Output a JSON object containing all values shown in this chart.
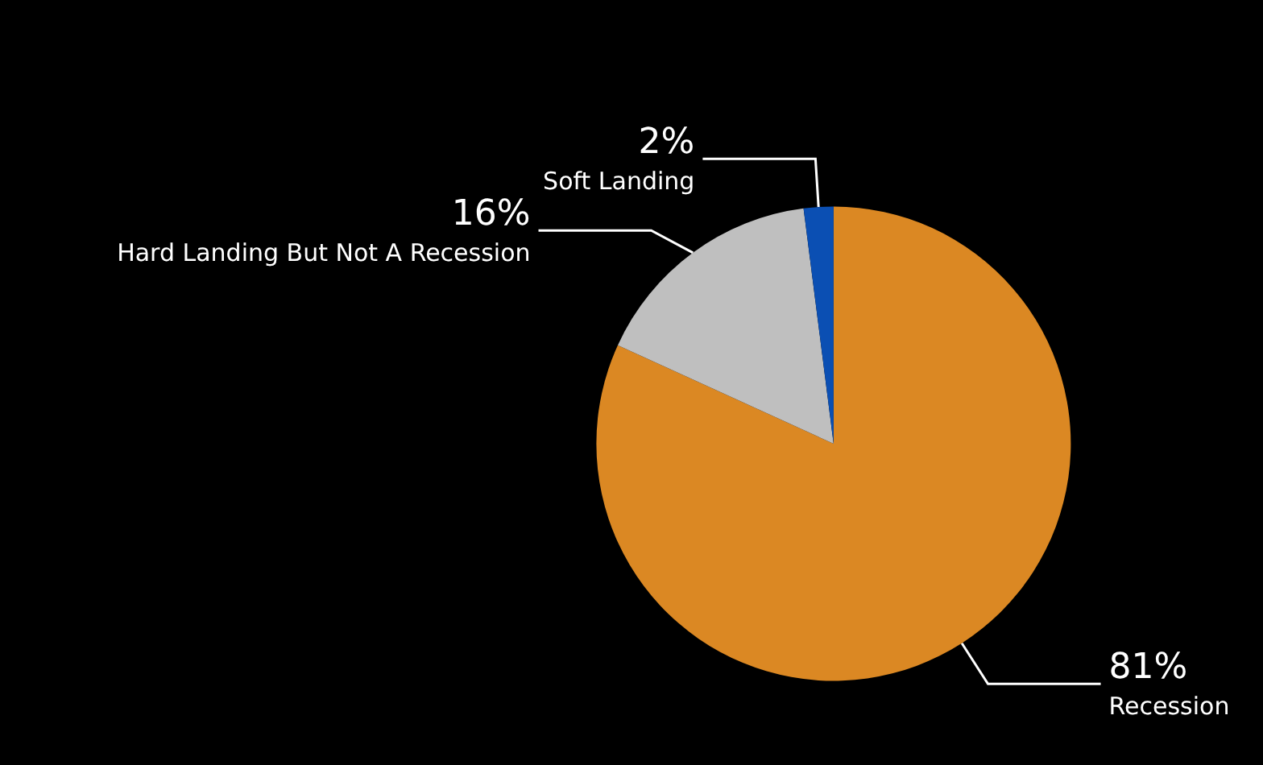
{
  "chart_data": {
    "type": "pie",
    "categories": [
      "Recession",
      "Hard Landing But Not A Recession",
      "Soft Landing"
    ],
    "values": [
      81,
      16,
      2
    ],
    "value_labels": [
      "81%",
      "16%",
      "2%"
    ],
    "colors": [
      "#db8823",
      "#bfbfbf",
      "#0b4fb3"
    ],
    "legend": false
  }
}
